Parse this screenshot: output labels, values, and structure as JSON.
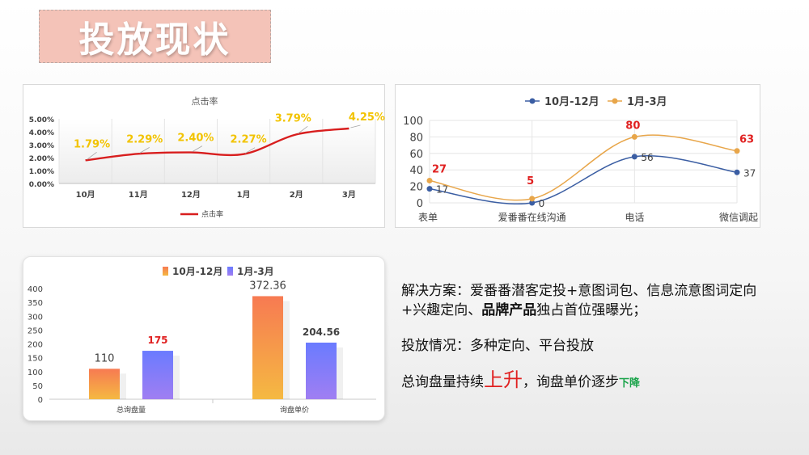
{
  "page": {
    "title": "投放现状",
    "solution_prefix": "解决方案：爱番番潜客定投+意图词包、信息流意图词定向+兴趣定向、",
    "solution_bold": "品牌产品",
    "solution_suffix": "独占首位强曝光；",
    "status_line": "投放情况：多种定向、平台投放",
    "trend_prefix": "总询盘量持续",
    "trend_up": "上升",
    "trend_mid": "，询盘单价逐步",
    "trend_down": "下降",
    "colors": {
      "ctr_line": "#d81e1e",
      "ctr_label": "#f2c300",
      "series_a": "#3b5ea3",
      "series_b": "#e8a64a",
      "highlight_red": "#e02020",
      "highlight_green": "#1aa34a"
    }
  },
  "chart_data": [
    {
      "type": "line",
      "title": "点击率",
      "categories": [
        "10月",
        "11月",
        "12月",
        "1月",
        "2月",
        "3月"
      ],
      "series": [
        {
          "name": "点击率",
          "values": [
            1.79,
            2.29,
            2.4,
            2.27,
            3.79,
            4.25
          ]
        }
      ],
      "data_labels": [
        "1.79%",
        "2.29%",
        "2.40%",
        "2.27%",
        "3.79%",
        "4.25%"
      ],
      "yticks": [
        "0.00%",
        "1.00%",
        "2.00%",
        "3.00%",
        "4.00%",
        "5.00%"
      ],
      "ylim": [
        0,
        5
      ],
      "legend": "bottom",
      "grid": false
    },
    {
      "type": "line",
      "title": "",
      "categories": [
        "表单",
        "爱番番在线沟通",
        "电话",
        "微信调起"
      ],
      "series": [
        {
          "name": "10月-12月",
          "values": [
            17,
            0,
            56,
            37
          ]
        },
        {
          "name": "1月-3月",
          "values": [
            27,
            5,
            80,
            63
          ]
        }
      ],
      "yticks": [
        "0",
        "20",
        "40",
        "60",
        "80",
        "100"
      ],
      "ylim": [
        0,
        100
      ],
      "legend": "top",
      "grid": true
    },
    {
      "type": "bar",
      "title": "",
      "categories": [
        "总询盘量",
        "询盘单价"
      ],
      "series": [
        {
          "name": "10月-12月",
          "values": [
            110,
            372.36
          ],
          "labels": [
            "110",
            "372.36"
          ]
        },
        {
          "name": "1月-3月",
          "values": [
            175,
            204.56
          ],
          "labels": [
            "175",
            "204.56"
          ]
        }
      ],
      "yticks": [
        "0",
        "50",
        "100",
        "150",
        "200",
        "250",
        "300",
        "350",
        "400"
      ],
      "ylim": [
        0,
        400
      ],
      "legend": "top",
      "grid": false
    }
  ]
}
